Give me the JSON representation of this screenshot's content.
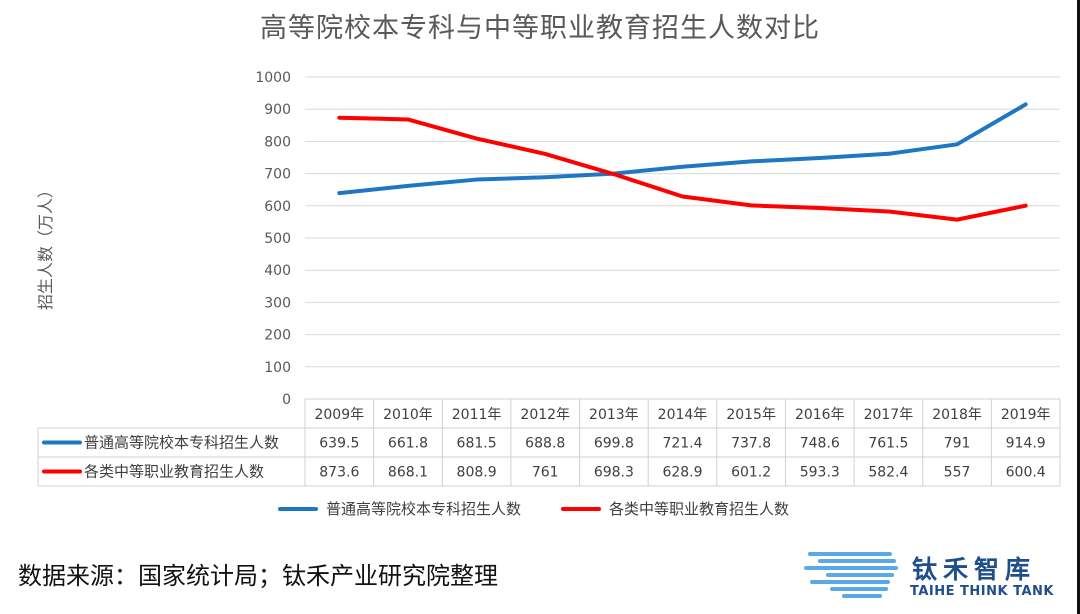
{
  "chart_data": {
    "type": "line",
    "title": "高等院校本专科与中等职业教育招生人数对比",
    "ylabel": "招生人数（万人）",
    "xlabel": "",
    "ylim": [
      0,
      1000
    ],
    "yticks": [
      0,
      100,
      200,
      300,
      400,
      500,
      600,
      700,
      800,
      900,
      1000
    ],
    "grid": true,
    "legend_position": "bottom",
    "data_table": true,
    "categories": [
      "2009年",
      "2010年",
      "2011年",
      "2012年",
      "2013年",
      "2014年",
      "2015年",
      "2016年",
      "2017年",
      "2018年",
      "2019年"
    ],
    "series": [
      {
        "name": "普通高等院校本专科招生人数",
        "color": "#1f77c4",
        "values": [
          639.5,
          661.8,
          681.5,
          688.8,
          699.8,
          721.4,
          737.8,
          748.6,
          761.5,
          791,
          914.9
        ]
      },
      {
        "name": "各类中等职业教育招生人数",
        "color": "#ff0000",
        "values": [
          873.6,
          868.1,
          808.9,
          761,
          698.3,
          628.9,
          601.2,
          593.3,
          582.4,
          557,
          600.4
        ]
      }
    ]
  },
  "footer": {
    "source": "数据来源：国家统计局；钛禾产业研究院整理"
  },
  "logo": {
    "name_cn": "钛禾智库",
    "name_en": "TAIHE THINK TANK"
  }
}
